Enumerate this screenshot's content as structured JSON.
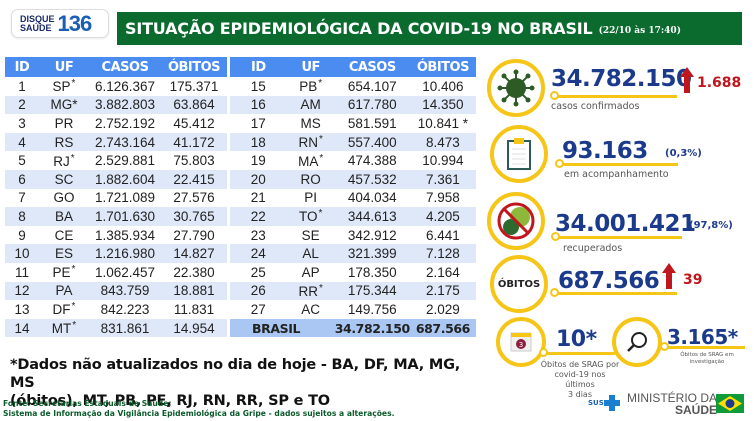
{
  "header": {
    "logo_small": "DISQUE\nSAÚDE",
    "logo_small_line1": "DISQUE",
    "logo_small_line2": "SAÚDE",
    "logo_number": "136",
    "title": "SITUAÇÃO EPIDEMIOLÓGICA DA COVID-19 NO BRASIL",
    "datetime": "(22/10 às 17:40)"
  },
  "table": {
    "columns": [
      "ID",
      "UF",
      "CASOS",
      "ÓBITOS"
    ],
    "left_rows": [
      {
        "id": "1",
        "uf": "SP",
        "star_uf": true,
        "casos": "6.126.367",
        "obitos": "175.371"
      },
      {
        "id": "2",
        "uf": "MG*",
        "star_uf": false,
        "casos": "3.882.803",
        "obitos": "63.864"
      },
      {
        "id": "3",
        "uf": "PR",
        "star_uf": false,
        "casos": "2.752.192",
        "obitos": "45.412"
      },
      {
        "id": "4",
        "uf": "RS",
        "star_uf": false,
        "casos": "2.743.164",
        "obitos": "41.172"
      },
      {
        "id": "5",
        "uf": "RJ",
        "star_uf": true,
        "casos": "2.529.881",
        "obitos": "75.803"
      },
      {
        "id": "6",
        "uf": "SC",
        "star_uf": false,
        "casos": "1.882.604",
        "obitos": "22.415"
      },
      {
        "id": "7",
        "uf": "GO",
        "star_uf": false,
        "casos": "1.721.089",
        "obitos": "27.576"
      },
      {
        "id": "8",
        "uf": "BA",
        "star_uf": false,
        "casos": "1.701.630",
        "obitos": "30.765"
      },
      {
        "id": "9",
        "uf": "CE",
        "star_uf": false,
        "casos": "1.385.934",
        "obitos": "27.790"
      },
      {
        "id": "10",
        "uf": "ES",
        "star_uf": false,
        "casos": "1.216.980",
        "obitos": "14.827"
      },
      {
        "id": "11",
        "uf": "PE",
        "star_uf": true,
        "casos": "1.062.457",
        "obitos": "22.380"
      },
      {
        "id": "12",
        "uf": "PA",
        "star_uf": false,
        "casos": "843.759",
        "obitos": "18.881"
      },
      {
        "id": "13",
        "uf": "DF",
        "star_uf": true,
        "casos": "842.223",
        "obitos": "11.831"
      },
      {
        "id": "14",
        "uf": "MT",
        "star_uf": true,
        "casos": "831.861",
        "obitos": "14.954"
      }
    ],
    "right_rows": [
      {
        "id": "15",
        "uf": "PB",
        "star_uf": true,
        "casos": "654.107",
        "obitos": "10.406"
      },
      {
        "id": "16",
        "uf": "AM",
        "star_uf": false,
        "casos": "617.780",
        "obitos": "14.350"
      },
      {
        "id": "17",
        "uf": "MS",
        "star_uf": false,
        "casos": "581.591",
        "obitos": "10.841 *"
      },
      {
        "id": "18",
        "uf": "RN",
        "star_uf": true,
        "casos": "557.400",
        "obitos": "8.473"
      },
      {
        "id": "19",
        "uf": "MA",
        "star_uf": true,
        "casos": "474.388",
        "obitos": "10.994"
      },
      {
        "id": "20",
        "uf": "RO",
        "star_uf": false,
        "casos": "457.532",
        "obitos": "7.361"
      },
      {
        "id": "21",
        "uf": "PI",
        "star_uf": false,
        "casos": "404.034",
        "obitos": "7.958"
      },
      {
        "id": "22",
        "uf": "TO",
        "star_uf": true,
        "casos": "344.613",
        "obitos": "4.205"
      },
      {
        "id": "23",
        "uf": "SE",
        "star_uf": false,
        "casos": "342.912",
        "obitos": "6.441"
      },
      {
        "id": "24",
        "uf": "AL",
        "star_uf": false,
        "casos": "321.399",
        "obitos": "7.128"
      },
      {
        "id": "25",
        "uf": "AP",
        "star_uf": false,
        "casos": "178.350",
        "obitos": "2.164"
      },
      {
        "id": "26",
        "uf": "RR",
        "star_uf": true,
        "casos": "175.344",
        "obitos": "2.175"
      },
      {
        "id": "27",
        "uf": "AC",
        "star_uf": false,
        "casos": "149.756",
        "obitos": "2.029"
      }
    ],
    "total": {
      "label": "BRASIL",
      "casos": "34.782.150",
      "obitos": "687.566"
    }
  },
  "indicators": {
    "confirmed": {
      "value": "34.782.150",
      "delta": "1.688",
      "label": "casos confirmados",
      "icon": "virus-icon"
    },
    "monitoring": {
      "value": "93.163",
      "pct": "(0,3%)",
      "label": "em acompanhamento",
      "icon": "clipboard-icon"
    },
    "recovered": {
      "value": "34.001.421",
      "pct": "(97,8%)",
      "label": "recuperados",
      "icon": "no-virus-icon"
    },
    "deaths": {
      "badge": "ÓBITOS",
      "value": "687.566",
      "delta": "39"
    },
    "srag_recent": {
      "value": "10*",
      "label_line1": "Óbitos de SRAG por",
      "label_line2": "covid-19 nos últimos",
      "label_line3": "3 dias",
      "calendar_day": "3",
      "icon": "calendar-icon"
    },
    "srag_investigation": {
      "value": "3.165*",
      "label_line1": "Óbitos de SRAG em",
      "label_line2": "investigação",
      "icon": "magnifier-icon"
    }
  },
  "footer": {
    "note_line1": "*Dados não atualizados no dia de hoje - BA, DF, MA, MG, MS",
    "note_line2": "(óbitos), MT, PB, PE, RJ, RN, RR, SP e TO",
    "source_line1": "Fonte: Secretarias Estaduais de Saúde;",
    "source_line2": "Sistema de Informação da Vigilância Epidemiológica da Gripe - dados sujeitos a alterações.",
    "sus_label": "SUS",
    "ministry_line1": "MINISTÉRIO DA",
    "ministry_line2": "SAÚDE"
  },
  "colors": {
    "banner_green": "#0b6a2e",
    "table_header_blue": "#4a8cef",
    "row_stripe": "#dfe8f8",
    "total_row": "#a9c7f2",
    "value_blue": "#1b3a8b",
    "accent_yellow": "#f5c518",
    "delta_red": "#c0161d"
  }
}
